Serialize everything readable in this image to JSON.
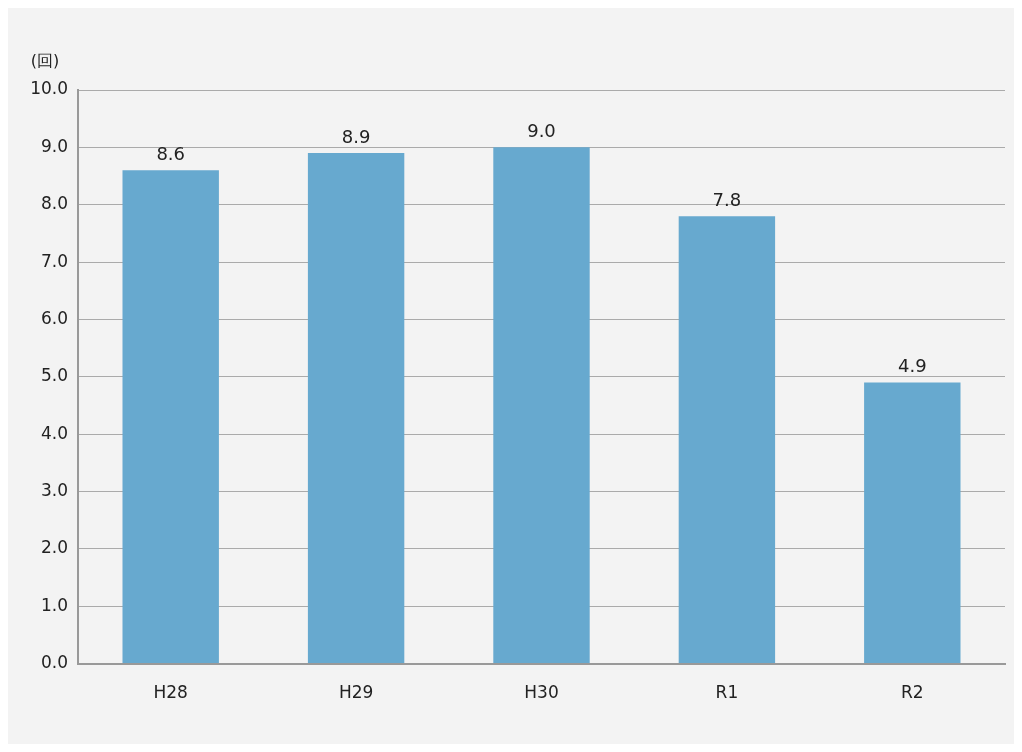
{
  "chart_data": {
    "type": "bar",
    "ylabel": "(回)",
    "categories": [
      "H28",
      "H29",
      "H30",
      "R1",
      "R2"
    ],
    "values": [
      8.6,
      8.9,
      9.0,
      7.8,
      4.9
    ],
    "value_labels": [
      "8.6",
      "8.9",
      "9.0",
      "7.8",
      "4.9"
    ],
    "color": "#67a9cf",
    "ylim": [
      0,
      10
    ],
    "yticks": [
      {
        "value": 0,
        "label": "0.0"
      },
      {
        "value": 1,
        "label": "1.0"
      },
      {
        "value": 2,
        "label": "2.0"
      },
      {
        "value": 3,
        "label": "3.0"
      },
      {
        "value": 4,
        "label": "4.0"
      },
      {
        "value": 5,
        "label": "5.0"
      },
      {
        "value": 6,
        "label": "6.0"
      },
      {
        "value": 7,
        "label": "7.0"
      },
      {
        "value": 8,
        "label": "8.0"
      },
      {
        "value": 9,
        "label": "9.0"
      },
      {
        "value": 10,
        "label": "10.0"
      }
    ],
    "grid": "y"
  }
}
